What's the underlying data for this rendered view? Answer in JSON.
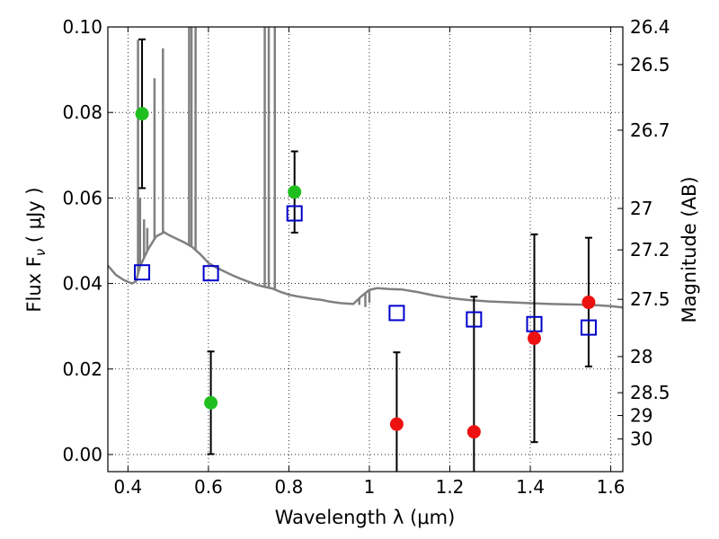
{
  "chart_data": {
    "type": "scatter",
    "xlabel": "Wavelength  λ (μm)",
    "ylabel_left": "Flux  F",
    "ylabel_left_sub": "ν",
    "ylabel_left_unit": " ( μJy )",
    "ylabel_right": "Magnitude (AB)",
    "xlim": [
      0.35,
      1.63
    ],
    "ylim": [
      -0.004,
      0.1
    ],
    "grid": true,
    "x_ticks": [
      0.4,
      0.6,
      0.8,
      1.0,
      1.2,
      1.4,
      1.6
    ],
    "x_tick_labels": [
      "0.4",
      "0.6",
      "0.8",
      "1",
      "1.2",
      "1.4",
      "1.6"
    ],
    "y_ticks": [
      0.0,
      0.02,
      0.04,
      0.06,
      0.08,
      0.1
    ],
    "y_tick_labels": [
      "0.00",
      "0.02",
      "0.04",
      "0.06",
      "0.08",
      "0.10"
    ],
    "right_ticks": [
      {
        "mag": 26.4,
        "label": "26.4"
      },
      {
        "mag": 26.5,
        "label": "26.5"
      },
      {
        "mag": 26.7,
        "label": "26.7"
      },
      {
        "mag": 27.0,
        "label": "27"
      },
      {
        "mag": 27.2,
        "label": "27.2"
      },
      {
        "mag": 27.5,
        "label": "27.5"
      },
      {
        "mag": 28.0,
        "label": "28"
      },
      {
        "mag": 28.5,
        "label": "28.5"
      },
      {
        "mag": 29.0,
        "label": "29"
      },
      {
        "mag": 30.0,
        "label": "30"
      }
    ],
    "colors": {
      "green": "#1fbf1f",
      "red": "#ee1111",
      "model_square": "#0000cc",
      "sed": "#808080",
      "errorbar": "#000000"
    },
    "detections_green": [
      {
        "x": 0.435,
        "y": 0.0797,
        "lo": 0.0623,
        "hi": 0.0971
      },
      {
        "x": 0.606,
        "y": 0.0121,
        "lo": 0.0001,
        "hi": 0.0241
      },
      {
        "x": 0.814,
        "y": 0.0614,
        "lo": 0.0519,
        "hi": 0.0709
      }
    ],
    "detections_red": [
      {
        "x": 1.068,
        "y": 0.0071,
        "lo": -0.005,
        "hi": 0.0239
      },
      {
        "x": 1.26,
        "y": 0.0053,
        "lo": -0.005,
        "hi": 0.0369
      },
      {
        "x": 1.41,
        "y": 0.0272,
        "lo": 0.0029,
        "hi": 0.0515
      },
      {
        "x": 1.545,
        "y": 0.0356,
        "lo": 0.0206,
        "hi": 0.0507
      }
    ],
    "model_photometry": [
      {
        "x": 0.435,
        "y": 0.0426
      },
      {
        "x": 0.606,
        "y": 0.0424
      },
      {
        "x": 0.814,
        "y": 0.0564
      },
      {
        "x": 1.068,
        "y": 0.0331
      },
      {
        "x": 1.26,
        "y": 0.0316
      },
      {
        "x": 1.41,
        "y": 0.0305
      },
      {
        "x": 1.545,
        "y": 0.0297
      }
    ],
    "sed_continuum": [
      [
        0.35,
        0.0442
      ],
      [
        0.37,
        0.042
      ],
      [
        0.39,
        0.0408
      ],
      [
        0.41,
        0.04
      ],
      [
        0.42,
        0.0405
      ],
      [
        0.43,
        0.044
      ],
      [
        0.45,
        0.048
      ],
      [
        0.47,
        0.051
      ],
      [
        0.49,
        0.052
      ],
      [
        0.5,
        0.0514
      ],
      [
        0.52,
        0.0505
      ],
      [
        0.54,
        0.0496
      ],
      [
        0.56,
        0.0485
      ],
      [
        0.58,
        0.0468
      ],
      [
        0.6,
        0.0448
      ],
      [
        0.62,
        0.0437
      ],
      [
        0.64,
        0.0428
      ],
      [
        0.66,
        0.0419
      ],
      [
        0.68,
        0.0411
      ],
      [
        0.7,
        0.0404
      ],
      [
        0.72,
        0.0397
      ],
      [
        0.74,
        0.0392
      ],
      [
        0.76,
        0.0388
      ],
      [
        0.78,
        0.038
      ],
      [
        0.8,
        0.0374
      ],
      [
        0.82,
        0.037
      ],
      [
        0.84,
        0.0367
      ],
      [
        0.86,
        0.0364
      ],
      [
        0.88,
        0.0362
      ],
      [
        0.9,
        0.0358
      ],
      [
        0.93,
        0.0354
      ],
      [
        0.96,
        0.0352
      ],
      [
        0.98,
        0.037
      ],
      [
        1.0,
        0.0385
      ],
      [
        1.02,
        0.0389
      ],
      [
        1.05,
        0.0387
      ],
      [
        1.08,
        0.0386
      ],
      [
        1.12,
        0.038
      ],
      [
        1.16,
        0.0372
      ],
      [
        1.2,
        0.0366
      ],
      [
        1.25,
        0.0361
      ],
      [
        1.3,
        0.0358
      ],
      [
        1.35,
        0.0356
      ],
      [
        1.4,
        0.0354
      ],
      [
        1.45,
        0.0352
      ],
      [
        1.5,
        0.0351
      ],
      [
        1.55,
        0.035
      ],
      [
        1.6,
        0.0347
      ],
      [
        1.63,
        0.0344
      ]
    ],
    "sed_spikes": [
      {
        "x": 0.425,
        "top": 0.097
      },
      {
        "x": 0.43,
        "top": 0.06
      },
      {
        "x": 0.44,
        "top": 0.055
      },
      {
        "x": 0.448,
        "top": 0.053
      },
      {
        "x": 0.466,
        "top": 0.088
      },
      {
        "x": 0.487,
        "top": 0.095
      },
      {
        "x": 0.552,
        "top": 0.1
      },
      {
        "x": 0.558,
        "top": 0.1
      },
      {
        "x": 0.568,
        "top": 0.1
      },
      {
        "x": 0.74,
        "top": 0.1
      },
      {
        "x": 0.75,
        "top": 0.1
      },
      {
        "x": 0.765,
        "top": 0.1
      }
    ],
    "sed_dips": [
      {
        "x": 0.975,
        "bottom": 0.035
      },
      {
        "x": 0.99,
        "bottom": 0.0345
      },
      {
        "x": 1.0,
        "bottom": 0.0355
      }
    ]
  }
}
